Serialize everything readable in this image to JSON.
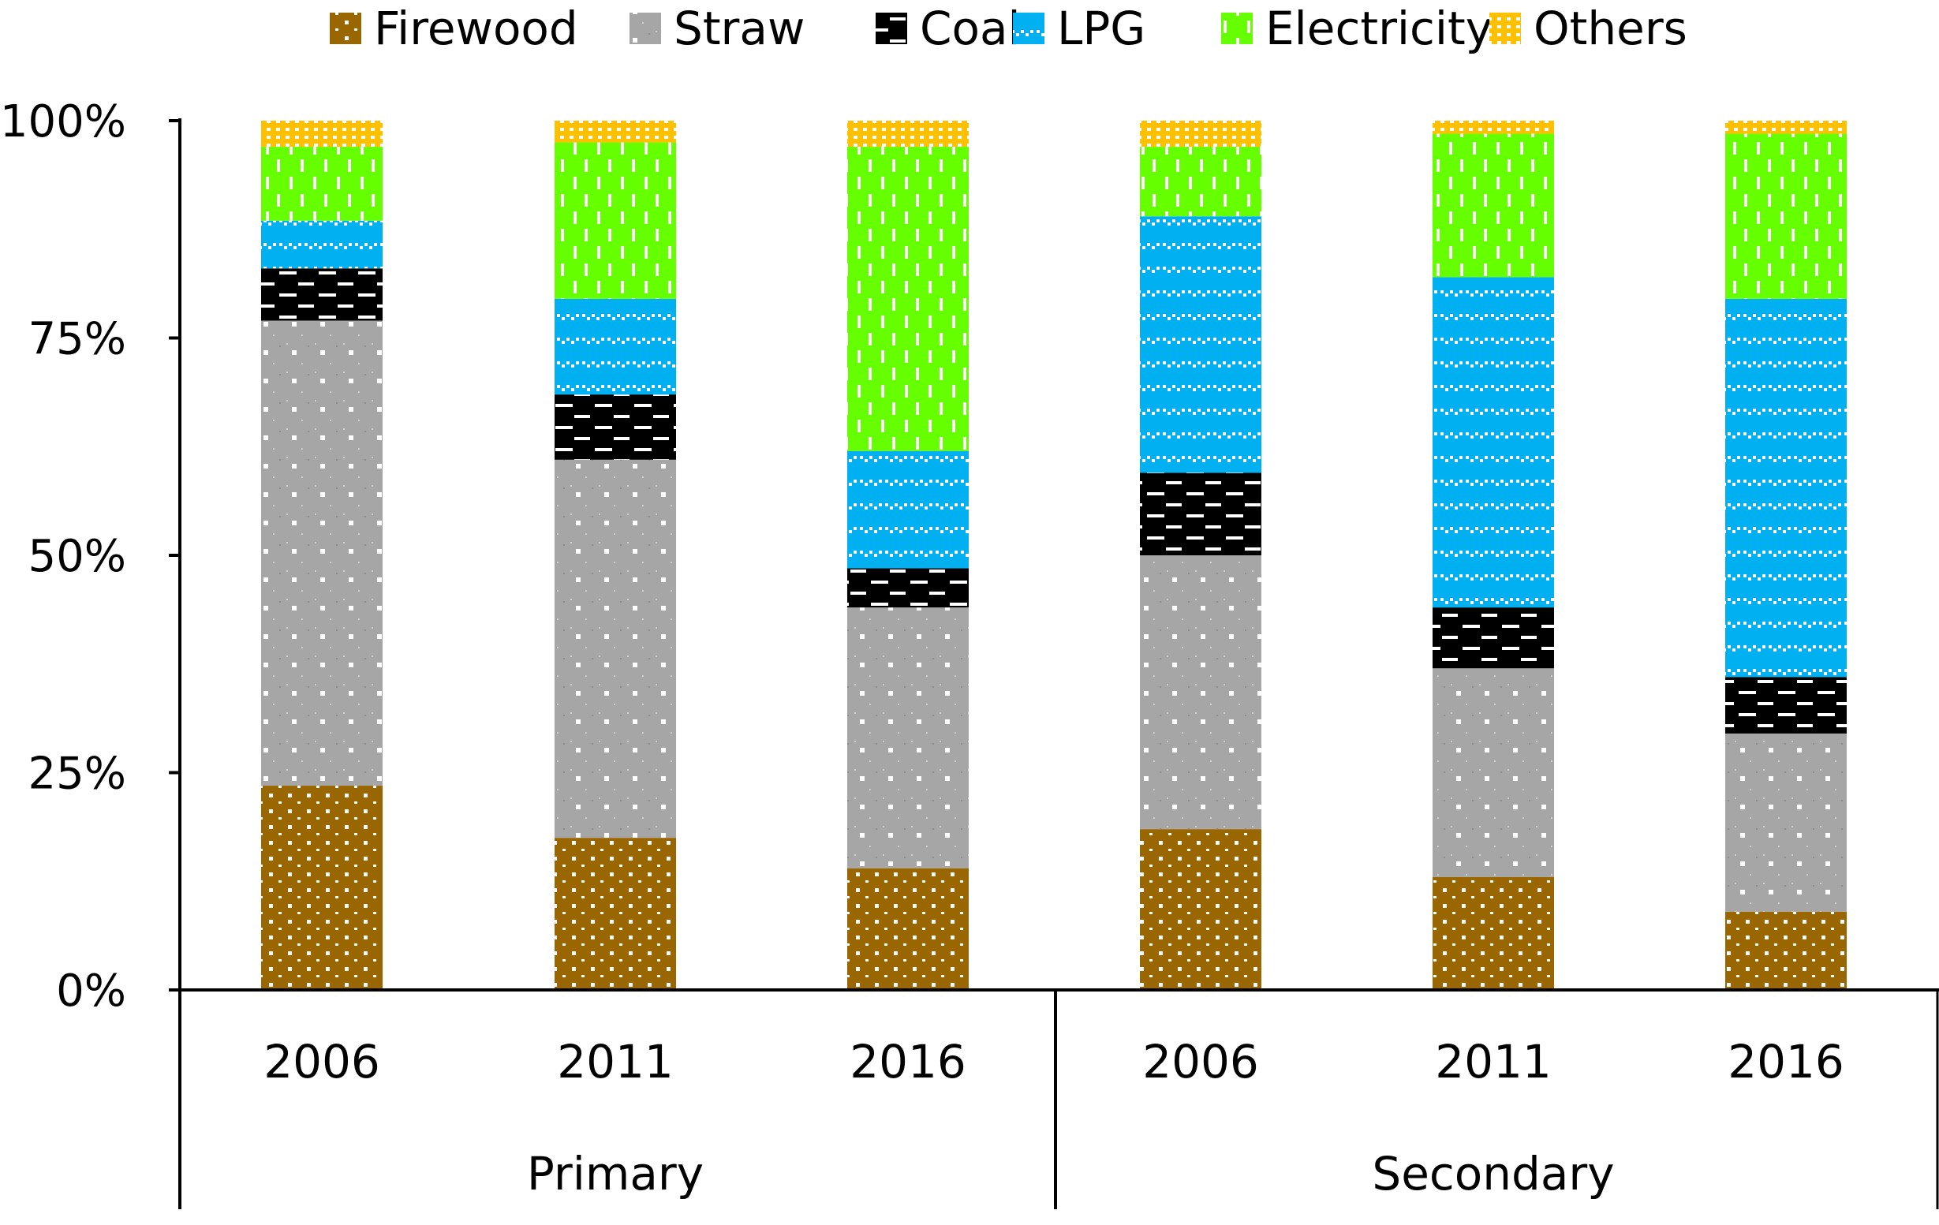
{
  "chart_data": {
    "type": "bar",
    "stacked": true,
    "percent_stacked": true,
    "title": "",
    "xlabel": "",
    "ylabel": "",
    "ylim": [
      0,
      100
    ],
    "y_ticks": [
      "0%",
      "25%",
      "50%",
      "75%",
      "100%"
    ],
    "y_tick_values": [
      0,
      25,
      50,
      75,
      100
    ],
    "legend_position": "top",
    "groups": [
      {
        "name": "Primary",
        "categories": [
          "2006",
          "2011",
          "2016"
        ]
      },
      {
        "name": "Secondary",
        "categories": [
          "2006",
          "2011",
          "2016"
        ]
      }
    ],
    "categories": [
      "2006",
      "2011",
      "2016",
      "2006",
      "2011",
      "2016"
    ],
    "series": [
      {
        "name": "Firewood",
        "color": "#996600",
        "pattern": "dots",
        "values": [
          23.5,
          17.5,
          14,
          18.5,
          13,
          9
        ]
      },
      {
        "name": "Straw",
        "color": "#a6a6a6",
        "pattern": "fine",
        "values": [
          53.5,
          43.5,
          30,
          31.5,
          24,
          20.5
        ]
      },
      {
        "name": "Coal",
        "color": "#000000",
        "pattern": "dashes",
        "values": [
          6,
          7.5,
          4.5,
          9.5,
          7,
          6.5
        ]
      },
      {
        "name": "LPG",
        "color": "#00b0f0",
        "pattern": "waves",
        "values": [
          5.5,
          11,
          13.5,
          29.5,
          38,
          43.5
        ]
      },
      {
        "name": "Electricity",
        "color": "#66ff00",
        "pattern": "vdash",
        "values": [
          8.5,
          18,
          35,
          8,
          16.5,
          19
        ]
      },
      {
        "name": "Others",
        "color": "#ffc000",
        "pattern": "grid",
        "values": [
          3,
          2.5,
          3,
          3,
          1.5,
          1.5
        ]
      }
    ]
  }
}
